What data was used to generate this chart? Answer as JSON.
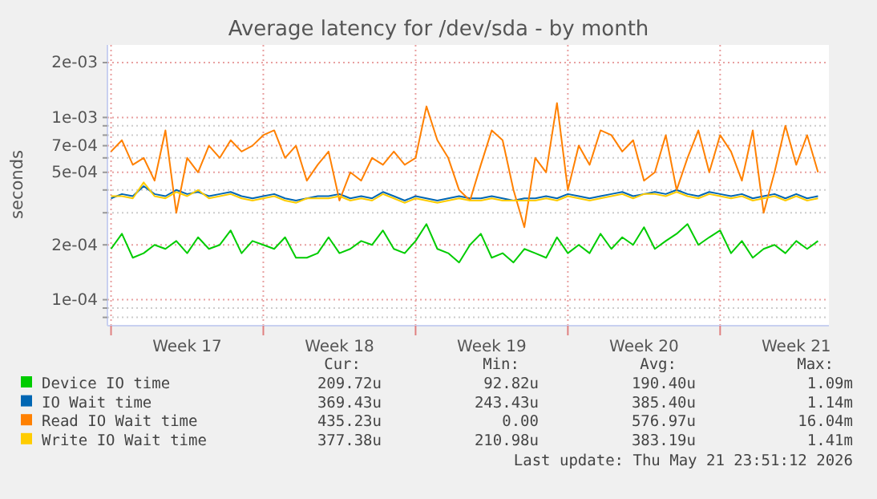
{
  "chart_data": {
    "type": "line",
    "title": "Average latency for /dev/sda - by month",
    "ylabel": "seconds",
    "log": true,
    "grid": true,
    "legend": "bottom",
    "xlim": [
      "2026-04-19T20:00",
      "2026-05-23T00:00"
    ],
    "xticks": [
      {
        "value": "2026-04-20T00:00",
        "label": null
      },
      {
        "value": "2026-04-23T12:00",
        "label": "Week 17"
      },
      {
        "value": "2026-04-27T00:00",
        "label": null
      },
      {
        "value": "2026-04-30T12:00",
        "label": "Week 18"
      },
      {
        "value": "2026-05-04T00:00",
        "label": null
      },
      {
        "value": "2026-05-07T12:00",
        "label": "Week 19"
      },
      {
        "value": "2026-05-11T00:00",
        "label": null
      },
      {
        "value": "2026-05-14T12:00",
        "label": "Week 20"
      },
      {
        "value": "2026-05-18T00:00",
        "label": null
      },
      {
        "value": "2026-05-21T12:00",
        "label": "Week 21"
      }
    ],
    "ylim": [
      7.2e-05,
      0.0025
    ],
    "yticks": [
      {
        "value": 8e-05,
        "label": null
      },
      {
        "value": 9e-05,
        "label": null
      },
      {
        "value": 0.0001,
        "label": "1e-04"
      },
      {
        "value": 0.0002,
        "label": "2e-04"
      },
      {
        "value": 0.0003,
        "label": null
      },
      {
        "value": 0.0004,
        "label": null
      },
      {
        "value": 0.0005,
        "label": "5e-04"
      },
      {
        "value": 0.0006,
        "label": null
      },
      {
        "value": 0.0007,
        "label": "7e-04"
      },
      {
        "value": 0.0008,
        "label": null
      },
      {
        "value": 0.0009,
        "label": null
      },
      {
        "value": 0.001,
        "label": "1e-03"
      },
      {
        "value": 0.002,
        "label": "2e-03"
      }
    ],
    "x": [
      "2026-04-20T00:00",
      "2026-04-20T12:00",
      "2026-04-21T00:00",
      "2026-04-21T12:00",
      "2026-04-22T00:00",
      "2026-04-22T12:00",
      "2026-04-23T00:00",
      "2026-04-23T12:00",
      "2026-04-24T00:00",
      "2026-04-24T12:00",
      "2026-04-25T00:00",
      "2026-04-25T12:00",
      "2026-04-26T00:00",
      "2026-04-26T12:00",
      "2026-04-27T00:00",
      "2026-04-27T12:00",
      "2026-04-28T00:00",
      "2026-04-28T12:00",
      "2026-04-29T00:00",
      "2026-04-29T12:00",
      "2026-04-30T00:00",
      "2026-04-30T12:00",
      "2026-05-01T00:00",
      "2026-05-01T12:00",
      "2026-05-02T00:00",
      "2026-05-02T12:00",
      "2026-05-03T00:00",
      "2026-05-03T12:00",
      "2026-05-04T00:00",
      "2026-05-04T12:00",
      "2026-05-05T00:00",
      "2026-05-05T12:00",
      "2026-05-06T00:00",
      "2026-05-06T12:00",
      "2026-05-07T00:00",
      "2026-05-07T12:00",
      "2026-05-08T00:00",
      "2026-05-08T12:00",
      "2026-05-09T00:00",
      "2026-05-09T12:00",
      "2026-05-10T00:00",
      "2026-05-10T12:00",
      "2026-05-11T00:00",
      "2026-05-11T12:00",
      "2026-05-12T00:00",
      "2026-05-12T12:00",
      "2026-05-13T00:00",
      "2026-05-13T12:00",
      "2026-05-14T00:00",
      "2026-05-14T12:00",
      "2026-05-15T00:00",
      "2026-05-15T12:00",
      "2026-05-16T00:00",
      "2026-05-16T12:00",
      "2026-05-17T00:00",
      "2026-05-17T12:00",
      "2026-05-18T00:00",
      "2026-05-18T12:00",
      "2026-05-19T00:00",
      "2026-05-19T12:00",
      "2026-05-20T00:00",
      "2026-05-20T12:00",
      "2026-05-21T00:00",
      "2026-05-21T12:00",
      "2026-05-22T00:00",
      "2026-05-22T12:00"
    ],
    "series": [
      {
        "name": "Device IO time",
        "color": "#00cc00",
        "values": [
          0.00019,
          0.00023,
          0.00017,
          0.00018,
          0.0002,
          0.00019,
          0.00021,
          0.00018,
          0.00022,
          0.00019,
          0.0002,
          0.00024,
          0.00018,
          0.00021,
          0.0002,
          0.00019,
          0.00022,
          0.00017,
          0.00017,
          0.00018,
          0.00022,
          0.00018,
          0.00019,
          0.00021,
          0.0002,
          0.00024,
          0.00019,
          0.00018,
          0.00021,
          0.00026,
          0.00019,
          0.00018,
          0.00016,
          0.0002,
          0.00023,
          0.00017,
          0.00018,
          0.00016,
          0.00019,
          0.00018,
          0.00017,
          0.00022,
          0.00018,
          0.0002,
          0.00018,
          0.00023,
          0.00019,
          0.00022,
          0.0002,
          0.00025,
          0.00019,
          0.00021,
          0.00023,
          0.00026,
          0.0002,
          0.00022,
          0.00024,
          0.00018,
          0.00021,
          0.00017,
          0.00019,
          0.0002,
          0.00018,
          0.00021,
          0.00019,
          0.00021
        ]
      },
      {
        "name": "IO Wait time",
        "color": "#0066b3",
        "values": [
          0.00036,
          0.00038,
          0.00037,
          0.00042,
          0.00038,
          0.00037,
          0.0004,
          0.00038,
          0.00039,
          0.00037,
          0.00038,
          0.00039,
          0.00037,
          0.00036,
          0.00037,
          0.00038,
          0.00036,
          0.00035,
          0.00036,
          0.00037,
          0.00037,
          0.00038,
          0.00036,
          0.00037,
          0.00036,
          0.00039,
          0.00037,
          0.00035,
          0.00037,
          0.00036,
          0.00035,
          0.00036,
          0.00037,
          0.00036,
          0.00036,
          0.00037,
          0.00036,
          0.00035,
          0.00036,
          0.00036,
          0.00037,
          0.00036,
          0.00038,
          0.00037,
          0.00036,
          0.00037,
          0.00038,
          0.00039,
          0.00037,
          0.00038,
          0.00039,
          0.00038,
          0.0004,
          0.00038,
          0.00037,
          0.00039,
          0.00038,
          0.00037,
          0.00038,
          0.00036,
          0.00037,
          0.00038,
          0.00036,
          0.00038,
          0.00036,
          0.00037
        ]
      },
      {
        "name": "Read IO Wait time",
        "color": "#ff8000",
        "values": [
          0.00065,
          0.00075,
          0.00055,
          0.0006,
          0.00045,
          0.00085,
          0.0003,
          0.0006,
          0.0005,
          0.0007,
          0.0006,
          0.00075,
          0.00065,
          0.0007,
          0.0008,
          0.00085,
          0.0006,
          0.0007,
          0.00045,
          0.00055,
          0.00065,
          0.00035,
          0.0005,
          0.00045,
          0.0006,
          0.00055,
          0.00065,
          0.00055,
          0.0006,
          0.00115,
          0.00075,
          0.0006,
          0.0004,
          0.00035,
          0.00055,
          0.00085,
          0.00075,
          0.0004,
          0.00025,
          0.0006,
          0.0005,
          0.0012,
          0.0004,
          0.0007,
          0.00055,
          0.00085,
          0.0008,
          0.00065,
          0.00075,
          0.00045,
          0.0005,
          0.0008,
          0.0004,
          0.0006,
          0.00085,
          0.0005,
          0.0008,
          0.00065,
          0.00045,
          0.00085,
          0.0003,
          0.0005,
          0.0009,
          0.00055,
          0.0008,
          0.0005
        ]
      },
      {
        "name": "Write IO Wait time",
        "color": "#ffcc00",
        "values": [
          0.00037,
          0.00037,
          0.00036,
          0.00044,
          0.00037,
          0.00036,
          0.00039,
          0.00037,
          0.0004,
          0.00036,
          0.00037,
          0.00038,
          0.00036,
          0.00035,
          0.00036,
          0.00037,
          0.00035,
          0.00034,
          0.00036,
          0.00036,
          0.00036,
          0.00037,
          0.00035,
          0.00036,
          0.00035,
          0.00038,
          0.00036,
          0.00034,
          0.00036,
          0.00035,
          0.00034,
          0.00035,
          0.00036,
          0.00035,
          0.00035,
          0.00036,
          0.00035,
          0.00035,
          0.00035,
          0.00035,
          0.00036,
          0.00035,
          0.00037,
          0.00036,
          0.00035,
          0.00036,
          0.00037,
          0.00038,
          0.00036,
          0.00038,
          0.00038,
          0.00037,
          0.00039,
          0.00037,
          0.00036,
          0.00038,
          0.00037,
          0.00036,
          0.00037,
          0.00035,
          0.00036,
          0.00037,
          0.00035,
          0.00037,
          0.00035,
          0.00036
        ]
      }
    ],
    "annotations": [
      "Cur:",
      "Min:",
      "Avg:",
      "Max:",
      "209.72u",
      "92.82u",
      "190.40u",
      "1.09m",
      "369.43u",
      "243.43u",
      "385.40u",
      "1.14m",
      "435.23u",
      "0.00",
      "576.97u",
      "16.04m",
      "377.38u",
      "210.98u",
      "383.19u",
      "1.41m",
      "Last update: Thu May 21 23:51:12 2026"
    ]
  }
}
